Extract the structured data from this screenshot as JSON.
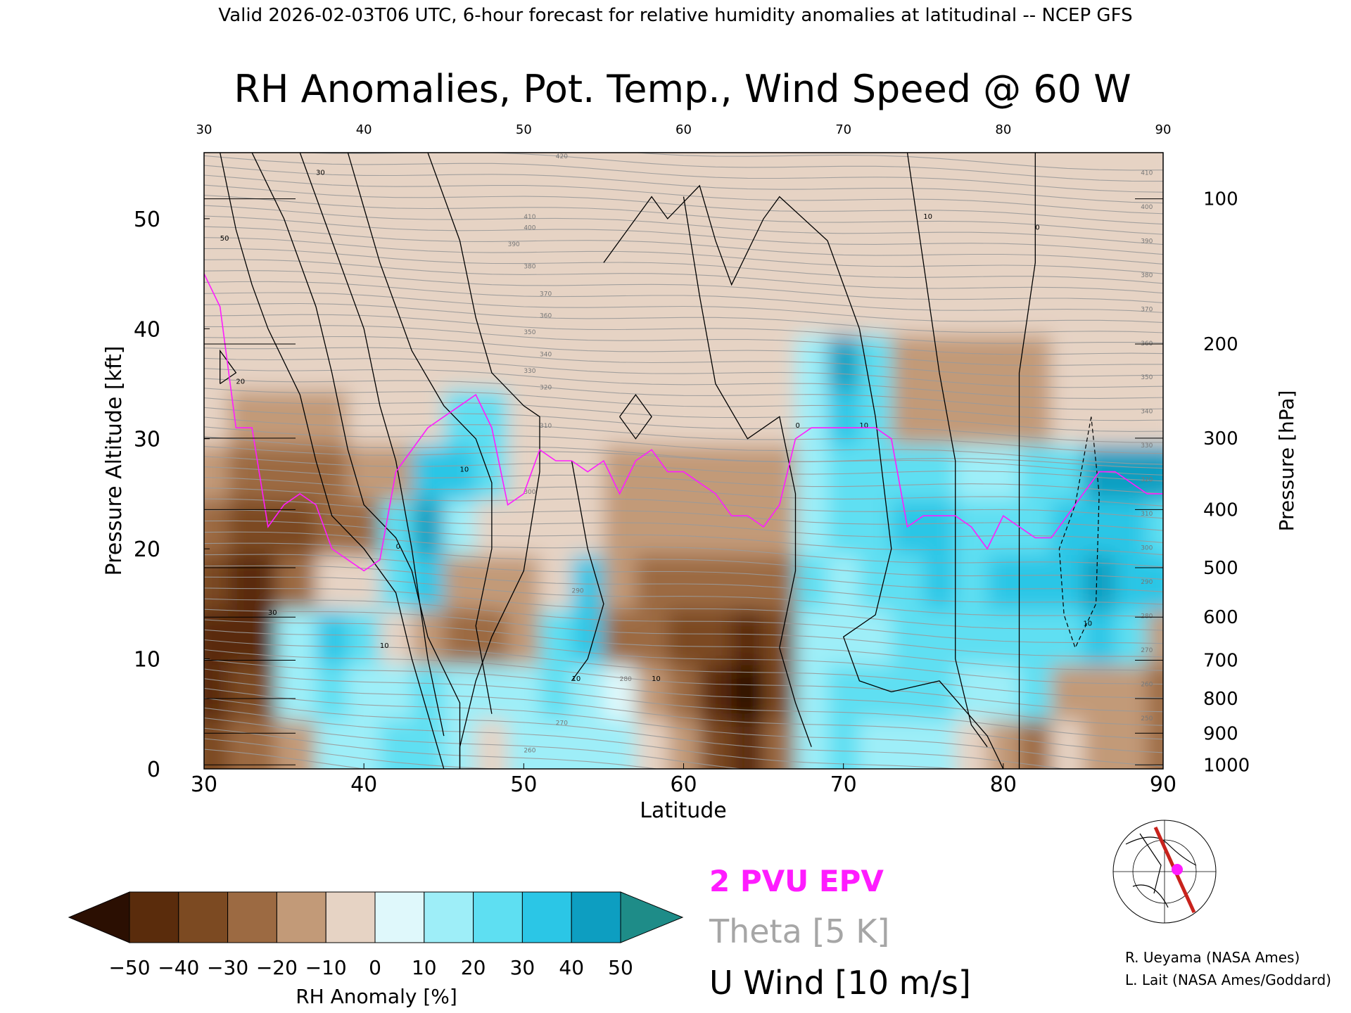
{
  "header": "Valid 2026-02-03T06 UTC, 6-hour forecast for relative humidity anomalies at latitudinal -- NCEP GFS",
  "chart_data": {
    "type": "heatmap",
    "title": "RH Anomalies, Pot. Temp., Wind Speed @ 60 W",
    "xlabel": "Latitude",
    "ylabel": "Pressure Altitude [kft]",
    "y2label": "Pressure [hPa]",
    "xlim": [
      30,
      90
    ],
    "ylim": [
      0,
      56
    ],
    "x_ticks": [
      "30",
      "40",
      "50",
      "60",
      "70",
      "80",
      "90"
    ],
    "y_ticks": [
      {
        "v": 0,
        "label": "0"
      },
      {
        "v": 10,
        "label": "10"
      },
      {
        "v": 20,
        "label": "20"
      },
      {
        "v": 30,
        "label": "30"
      },
      {
        "v": 40,
        "label": "40"
      },
      {
        "v": 50,
        "label": "50"
      }
    ],
    "p_ticks": [
      {
        "p": 100,
        "label": "100"
      },
      {
        "p": 200,
        "label": "200"
      },
      {
        "p": 300,
        "label": "300"
      },
      {
        "p": 400,
        "label": "400"
      },
      {
        "p": 500,
        "label": "500"
      },
      {
        "p": 600,
        "label": "600"
      },
      {
        "p": 700,
        "label": "700"
      },
      {
        "p": 800,
        "label": "800"
      },
      {
        "p": 900,
        "label": "900"
      },
      {
        "p": 1000,
        "label": "1000"
      }
    ],
    "rh_levels": [
      {
        "lat": 30,
        "rh": [
          -40,
          -45,
          -50,
          -35,
          -30,
          -15,
          -10,
          -5,
          -5,
          -5,
          -5,
          -5
        ]
      },
      {
        "lat": 33,
        "rh": [
          -30,
          -35,
          -50,
          -45,
          -35,
          -25,
          -15,
          -10,
          -10,
          -5,
          -5,
          -5
        ]
      },
      {
        "lat": 36,
        "rh": [
          -15,
          10,
          10,
          -30,
          -35,
          -30,
          -15,
          -10,
          -10,
          -5,
          -5,
          -5
        ]
      },
      {
        "lat": 38,
        "rh": [
          15,
          25,
          30,
          -5,
          -30,
          -25,
          -15,
          -10,
          -10,
          -5,
          -5,
          -5
        ]
      },
      {
        "lat": 40,
        "rh": [
          10,
          15,
          20,
          -10,
          -25,
          -20,
          -10,
          -10,
          -10,
          -5,
          -5,
          -5
        ]
      },
      {
        "lat": 42,
        "rh": [
          20,
          10,
          -5,
          25,
          20,
          -15,
          -10,
          -10,
          -10,
          -5,
          -5,
          -5
        ]
      },
      {
        "lat": 44,
        "rh": [
          25,
          20,
          -15,
          30,
          40,
          35,
          -5,
          -10,
          -10,
          -5,
          -5,
          -5
        ]
      },
      {
        "lat": 46,
        "rh": [
          15,
          10,
          -25,
          -20,
          15,
          30,
          25,
          -5,
          -10,
          -5,
          -5,
          -5
        ]
      },
      {
        "lat": 48,
        "rh": [
          -10,
          15,
          -25,
          -15,
          -10,
          20,
          25,
          -5,
          -10,
          -5,
          -5,
          -5
        ]
      },
      {
        "lat": 50,
        "rh": [
          10,
          15,
          -20,
          -15,
          -10,
          -10,
          -5,
          -5,
          -10,
          -5,
          -5,
          -5
        ]
      },
      {
        "lat": 52,
        "rh": [
          10,
          20,
          25,
          -10,
          -10,
          -10,
          -5,
          -5,
          -10,
          -5,
          -5,
          -5
        ]
      },
      {
        "lat": 54,
        "rh": [
          15,
          15,
          30,
          30,
          -10,
          -10,
          -5,
          -5,
          -10,
          -5,
          -5,
          -5
        ]
      },
      {
        "lat": 56,
        "rh": [
          10,
          5,
          -25,
          -20,
          -20,
          -15,
          -5,
          -5,
          -10,
          -5,
          -5,
          -5
        ]
      },
      {
        "lat": 58,
        "rh": [
          -10,
          -15,
          -30,
          -25,
          -20,
          -15,
          -5,
          -5,
          -10,
          -5,
          -5,
          -5
        ]
      },
      {
        "lat": 60,
        "rh": [
          -20,
          -25,
          -35,
          -25,
          -20,
          -15,
          -5,
          -5,
          -10,
          -5,
          -5,
          -5
        ]
      },
      {
        "lat": 62,
        "rh": [
          -35,
          -45,
          -40,
          -30,
          -20,
          -15,
          -5,
          -5,
          -10,
          -5,
          -5,
          -5
        ]
      },
      {
        "lat": 64,
        "rh": [
          -50,
          -55,
          -45,
          -30,
          -20,
          -15,
          -5,
          -5,
          -10,
          -5,
          -5,
          -5
        ]
      },
      {
        "lat": 66,
        "rh": [
          -30,
          -40,
          -35,
          -25,
          -20,
          -15,
          -5,
          -10,
          -10,
          -5,
          -5,
          -5
        ]
      },
      {
        "lat": 68,
        "rh": [
          15,
          10,
          10,
          20,
          15,
          10,
          15,
          10,
          -10,
          -5,
          -5,
          -5
        ]
      },
      {
        "lat": 70,
        "rh": [
          20,
          20,
          15,
          15,
          20,
          20,
          30,
          40,
          -10,
          -5,
          -5,
          -5
        ]
      },
      {
        "lat": 72,
        "rh": [
          15,
          20,
          15,
          25,
          25,
          20,
          25,
          20,
          -10,
          -5,
          -5,
          -5
        ]
      },
      {
        "lat": 74,
        "rh": [
          10,
          20,
          25,
          25,
          35,
          20,
          -15,
          -15,
          -10,
          -5,
          -5,
          -5
        ]
      },
      {
        "lat": 76,
        "rh": [
          15,
          20,
          25,
          30,
          30,
          20,
          -15,
          -15,
          -10,
          -5,
          -5,
          -5
        ]
      },
      {
        "lat": 78,
        "rh": [
          -10,
          15,
          20,
          25,
          20,
          15,
          -15,
          -15,
          -10,
          -5,
          -5,
          -5
        ]
      },
      {
        "lat": 80,
        "rh": [
          -20,
          15,
          25,
          30,
          25,
          15,
          -15,
          -15,
          -10,
          -5,
          -5,
          -5
        ]
      },
      {
        "lat": 82,
        "rh": [
          -25,
          20,
          25,
          30,
          25,
          20,
          -15,
          -15,
          -10,
          -5,
          -5,
          -5
        ]
      },
      {
        "lat": 84,
        "rh": [
          -10,
          -15,
          25,
          30,
          30,
          25,
          -10,
          -10,
          -10,
          -5,
          -5,
          -5
        ]
      },
      {
        "lat": 86,
        "rh": [
          -15,
          -15,
          30,
          40,
          35,
          40,
          -10,
          -10,
          -10,
          -5,
          -5,
          -5
        ]
      },
      {
        "lat": 88,
        "rh": [
          -20,
          -20,
          25,
          35,
          30,
          45,
          -10,
          -10,
          -10,
          -5,
          -5,
          -5
        ]
      },
      {
        "lat": 90,
        "rh": [
          -25,
          -25,
          -20,
          30,
          25,
          40,
          -10,
          -10,
          -10,
          -5,
          -5,
          -5
        ]
      }
    ],
    "rh_altitudes_kft": [
      2,
      7,
      12,
      17,
      22,
      27,
      32,
      37,
      42,
      47,
      52,
      56
    ],
    "theta_labels": [
      "420",
      "410",
      "400",
      "390",
      "380",
      "370",
      "360",
      "350",
      "340",
      "330",
      "320",
      "310",
      "300",
      "290",
      "280",
      "270",
      "260"
    ],
    "theta_right_labels": [
      "410",
      "400",
      "390",
      "380",
      "370",
      "360",
      "350",
      "340",
      "330",
      "320",
      "310",
      "300",
      "290",
      "280",
      "270",
      "260",
      "250"
    ],
    "wind_labels": [
      "0",
      "10",
      "20",
      "30",
      "50"
    ],
    "colorbar": {
      "label": "RH Anomaly [%]",
      "ticks": [
        "−50",
        "−40",
        "−30",
        "−20",
        "−10",
        "0",
        "10",
        "20",
        "30",
        "40",
        "50"
      ],
      "colors": [
        "#2b0f02",
        "#5a2c0c",
        "#7c4a22",
        "#9c6a42",
        "#c29a78",
        "#e6d3c4",
        "#dff8fb",
        "#9eeef8",
        "#5edff2",
        "#2bc6e6",
        "#0d9ec1",
        "#0b7290",
        "#1e8c88"
      ]
    },
    "legend": [
      {
        "label": "2 PVU EPV",
        "color": "#ff1cff"
      },
      {
        "label": "Theta [5 K]",
        "color": "#a6a6a6"
      },
      {
        "label": "U Wind [10 m/s]",
        "color": "#000000"
      }
    ],
    "epv_2pvu": [
      [
        30,
        45
      ],
      [
        31,
        42
      ],
      [
        32,
        31
      ],
      [
        33,
        31
      ],
      [
        34,
        22
      ],
      [
        35,
        24
      ],
      [
        36,
        25
      ],
      [
        37,
        24
      ],
      [
        38,
        20
      ],
      [
        39,
        19
      ],
      [
        40,
        18
      ],
      [
        41,
        19
      ],
      [
        42,
        27
      ],
      [
        43,
        29
      ],
      [
        44,
        31
      ],
      [
        45,
        32
      ],
      [
        46,
        33
      ],
      [
        47,
        34
      ],
      [
        48,
        31
      ],
      [
        49,
        24
      ],
      [
        50,
        25
      ],
      [
        51,
        29
      ],
      [
        52,
        28
      ],
      [
        53,
        28
      ],
      [
        54,
        27
      ],
      [
        55,
        28
      ],
      [
        56,
        25
      ],
      [
        57,
        28
      ],
      [
        58,
        29
      ],
      [
        59,
        27
      ],
      [
        60,
        27
      ],
      [
        61,
        26
      ],
      [
        62,
        25
      ],
      [
        63,
        23
      ],
      [
        64,
        23
      ],
      [
        65,
        22
      ],
      [
        66,
        24
      ],
      [
        67,
        30
      ],
      [
        68,
        31
      ],
      [
        69,
        31
      ],
      [
        70,
        31
      ],
      [
        71,
        31
      ],
      [
        72,
        31
      ],
      [
        73,
        30
      ],
      [
        74,
        22
      ],
      [
        75,
        23
      ],
      [
        76,
        23
      ],
      [
        77,
        23
      ],
      [
        78,
        22
      ],
      [
        79,
        20
      ],
      [
        80,
        23
      ],
      [
        81,
        22
      ],
      [
        82,
        21
      ],
      [
        83,
        21
      ],
      [
        84,
        23
      ],
      [
        85,
        25
      ],
      [
        86,
        27
      ],
      [
        87,
        27
      ],
      [
        88,
        26
      ],
      [
        89,
        25
      ],
      [
        90,
        25
      ]
    ],
    "credits": [
      "R. Ueyama (NASA Ames)",
      "L. Lait (NASA Ames/Goddard)"
    ]
  }
}
